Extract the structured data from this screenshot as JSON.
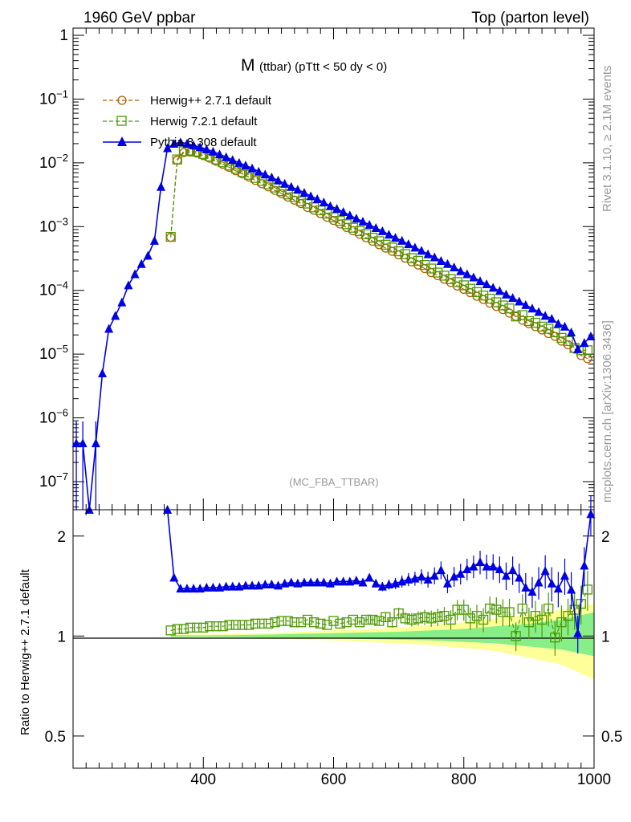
{
  "header": {
    "left": "1960 GeV ppbar",
    "right": "Top (parton level)"
  },
  "side_labels": {
    "rivet": "Rivet 3.1.10, ≥ 2.1M events",
    "source": "mcplots.cern.ch [arXiv:1306.3436]"
  },
  "watermark": "(MC_FBA_TTBAR)",
  "chart_data": [
    {
      "type": "line",
      "title_main": "M",
      "title_sub": "(ttbar) (pTtt < 50 dy < 0)",
      "yscale": "log",
      "xlim": [
        200,
        1000
      ],
      "ylim": [
        3e-08,
        1.3
      ],
      "ytick_labels": [
        "1",
        "10^{-1}",
        "10^{-2}",
        "10^{-3}",
        "10^{-4}",
        "10^{-5}",
        "10^{-6}",
        "10^{-7}"
      ],
      "legend_position": "top-left",
      "series": [
        {
          "name": "Herwig++ 2.7.1 default",
          "color": "#b35900",
          "marker": "open-circle",
          "dash": "dashed",
          "x": [
            350,
            360,
            370,
            380,
            390,
            400,
            410,
            420,
            430,
            440,
            450,
            460,
            470,
            480,
            490,
            500,
            510,
            520,
            530,
            540,
            550,
            560,
            570,
            580,
            590,
            600,
            610,
            620,
            630,
            640,
            650,
            660,
            670,
            680,
            690,
            700,
            710,
            720,
            730,
            740,
            750,
            760,
            770,
            780,
            790,
            800,
            810,
            820,
            830,
            840,
            850,
            860,
            870,
            880,
            890,
            900,
            910,
            920,
            930,
            940,
            950,
            960,
            970,
            980,
            990
          ],
          "y": [
            0.00068,
            0.011,
            0.0145,
            0.0148,
            0.0142,
            0.013,
            0.0118,
            0.0106,
            0.0095,
            0.0085,
            0.0075,
            0.0067,
            0.006,
            0.0053,
            0.0047,
            0.0042,
            0.0037,
            0.0033,
            0.0029,
            0.0026,
            0.0023,
            0.002,
            0.0018,
            0.0016,
            0.0014,
            0.00125,
            0.0011,
            0.00097,
            0.00086,
            0.00076,
            0.00067,
            0.00059,
            0.00052,
            0.00046,
            0.00041,
            0.00036,
            0.00032,
            0.00028,
            0.00025,
            0.00022,
            0.00019,
            0.00017,
            0.00015,
            0.000133,
            0.000117,
            0.000104,
            9.2e-05,
            8.1e-05,
            7.2e-05,
            6.3e-05,
            5.6e-05,
            5e-05,
            4.4e-05,
            3.9e-05,
            3.4e-05,
            3e-05,
            2.7e-05,
            2.4e-05,
            2.1e-05,
            1.9e-05,
            1.6e-05,
            1.4e-05,
            1.2e-05,
            9.5e-06,
            8.5e-06
          ]
        },
        {
          "name": "Herwig 7.2.1 default",
          "color": "#4d9900",
          "marker": "open-square",
          "dash": "dashed",
          "x": [
            350,
            360,
            370,
            380,
            390,
            400,
            410,
            420,
            430,
            440,
            450,
            460,
            470,
            480,
            490,
            500,
            510,
            520,
            530,
            540,
            550,
            560,
            570,
            580,
            590,
            600,
            610,
            620,
            630,
            640,
            650,
            660,
            670,
            680,
            690,
            700,
            710,
            720,
            730,
            740,
            750,
            760,
            770,
            780,
            790,
            800,
            810,
            820,
            830,
            840,
            850,
            860,
            870,
            880,
            890,
            900,
            910,
            920,
            930,
            940,
            950,
            960,
            970,
            980,
            990
          ],
          "y": [
            0.00069,
            0.0113,
            0.0152,
            0.0156,
            0.015,
            0.0138,
            0.0126,
            0.0113,
            0.0102,
            0.0091,
            0.0081,
            0.0072,
            0.0065,
            0.0058,
            0.0052,
            0.0046,
            0.0041,
            0.0036,
            0.0032,
            0.0029,
            0.0025,
            0.0023,
            0.002,
            0.0018,
            0.0016,
            0.0014,
            0.00123,
            0.00109,
            0.00096,
            0.00085,
            0.00076,
            0.00067,
            0.00059,
            0.00052,
            0.00047,
            0.00041,
            0.00037,
            0.00032,
            0.00029,
            0.00025,
            0.00022,
            0.00019,
            0.00017,
            0.00015,
            0.000135,
            0.00012,
            0.000106,
            9.4e-05,
            8.3e-05,
            7.4e-05,
            6.5e-05,
            5.8e-05,
            5.2e-05,
            3.9e-05,
            4.1e-05,
            3.3e-05,
            3.1e-05,
            2.7e-05,
            2.5e-05,
            2.2e-05,
            1.8e-05,
            1.6e-05,
            1.25e-05,
            1.15e-05,
            1.15e-05
          ]
        },
        {
          "name": "Pythia 8.308 default",
          "color": "#0000e6",
          "marker": "filled-triangle",
          "dash": "solid",
          "x": [
            205,
            215,
            225,
            235,
            245,
            255,
            265,
            275,
            285,
            295,
            305,
            315,
            325,
            335,
            345,
            355,
            365,
            375,
            385,
            395,
            405,
            415,
            425,
            435,
            445,
            455,
            465,
            475,
            485,
            495,
            505,
            515,
            525,
            535,
            545,
            555,
            565,
            575,
            585,
            595,
            605,
            615,
            625,
            635,
            645,
            655,
            665,
            675,
            685,
            695,
            705,
            715,
            725,
            735,
            745,
            755,
            765,
            775,
            785,
            795,
            805,
            815,
            825,
            835,
            845,
            855,
            865,
            875,
            885,
            895,
            905,
            915,
            925,
            935,
            945,
            955,
            965,
            975,
            985,
            995
          ],
          "y": [
            4e-07,
            4e-07,
            1e-08,
            4e-07,
            5e-06,
            2.5e-05,
            4e-05,
            6.5e-05,
            0.00012,
            0.00018,
            0.00026,
            0.00035,
            0.0006,
            0.0042,
            0.017,
            0.02,
            0.021,
            0.02,
            0.0188,
            0.0176,
            0.0163,
            0.015,
            0.0136,
            0.0123,
            0.0111,
            0.01,
            0.0091,
            0.0082,
            0.0073,
            0.0066,
            0.0059,
            0.0053,
            0.0047,
            0.0042,
            0.0038,
            0.0034,
            0.003,
            0.0027,
            0.0024,
            0.0021,
            0.0019,
            0.0017,
            0.0015,
            0.00134,
            0.0012,
            0.00107,
            0.00095,
            0.00085,
            0.00075,
            0.00067,
            0.0006,
            0.00053,
            0.00047,
            0.00042,
            0.00037,
            0.00033,
            0.00029,
            0.00026,
            0.00023,
            0.0002,
            0.00018,
            0.00016,
            0.00014,
            0.000125,
            0.00011,
            9.8e-05,
            8.6e-05,
            7.6e-05,
            6.7e-05,
            5.9e-05,
            5.2e-05,
            4.6e-05,
            4e-05,
            3.6e-05,
            3e-05,
            2.7e-05,
            2.2e-05,
            1.2e-05,
            1.5e-05,
            1.9e-05
          ]
        }
      ]
    },
    {
      "type": "line",
      "ylabel": "Ratio to Herwig++ 2.7.1 default",
      "yscale": "log",
      "xlim": [
        200,
        1000
      ],
      "ylim": [
        0.4,
        2.4
      ],
      "xtick_labels": [
        "400",
        "600",
        "800",
        "1000"
      ],
      "ytick_labels": [
        "0.5",
        "1",
        "2"
      ],
      "bands": {
        "x": [
          350,
          400,
          450,
          500,
          550,
          600,
          650,
          700,
          750,
          800,
          850,
          900,
          950,
          1000
        ],
        "yellow_lo": [
          0.99,
          0.99,
          0.985,
          0.98,
          0.975,
          0.97,
          0.96,
          0.95,
          0.94,
          0.92,
          0.9,
          0.86,
          0.82,
          0.74
        ],
        "yellow_hi": [
          1.01,
          1.01,
          1.015,
          1.02,
          1.03,
          1.04,
          1.05,
          1.06,
          1.08,
          1.1,
          1.13,
          1.16,
          1.2,
          1.25
        ],
        "green_lo": [
          0.995,
          0.995,
          0.993,
          0.99,
          0.988,
          0.985,
          0.98,
          0.975,
          0.97,
          0.96,
          0.95,
          0.93,
          0.91,
          0.87
        ],
        "green_hi": [
          1.005,
          1.005,
          1.007,
          1.01,
          1.015,
          1.02,
          1.025,
          1.03,
          1.04,
          1.05,
          1.07,
          1.09,
          1.12,
          1.18
        ]
      },
      "series": [
        {
          "name": "Herwig 7.2.1 default",
          "x": [
            350,
            360,
            370,
            380,
            390,
            400,
            410,
            420,
            430,
            440,
            450,
            460,
            470,
            480,
            490,
            500,
            510,
            520,
            530,
            540,
            550,
            560,
            570,
            580,
            590,
            600,
            610,
            620,
            630,
            640,
            650,
            660,
            670,
            680,
            690,
            700,
            710,
            720,
            730,
            740,
            750,
            760,
            770,
            780,
            790,
            800,
            810,
            820,
            830,
            840,
            850,
            860,
            870,
            880,
            890,
            900,
            910,
            920,
            930,
            940,
            950,
            960,
            970,
            980,
            990
          ],
          "y": [
            1.04,
            1.05,
            1.05,
            1.06,
            1.06,
            1.06,
            1.07,
            1.07,
            1.07,
            1.08,
            1.08,
            1.08,
            1.08,
            1.09,
            1.09,
            1.09,
            1.1,
            1.11,
            1.11,
            1.1,
            1.1,
            1.12,
            1.1,
            1.09,
            1.08,
            1.11,
            1.09,
            1.1,
            1.12,
            1.1,
            1.12,
            1.12,
            1.11,
            1.14,
            1.1,
            1.17,
            1.13,
            1.12,
            1.13,
            1.14,
            1.13,
            1.14,
            1.15,
            1.12,
            1.2,
            1.2,
            1.13,
            1.15,
            1.12,
            1.21,
            1.2,
            1.18,
            1.18,
            1.0,
            1.21,
            1.1,
            1.15,
            1.12,
            1.21,
            0.99,
            1.1,
            1.15,
            1.2,
            1.25,
            1.38
          ]
        },
        {
          "name": "Pythia 8.308 default",
          "x": [
            345,
            355,
            365,
            375,
            385,
            395,
            405,
            415,
            425,
            435,
            445,
            455,
            465,
            475,
            485,
            495,
            505,
            515,
            525,
            535,
            545,
            555,
            565,
            575,
            585,
            595,
            605,
            615,
            625,
            635,
            645,
            655,
            665,
            675,
            685,
            695,
            705,
            715,
            725,
            735,
            745,
            755,
            765,
            775,
            785,
            795,
            805,
            815,
            825,
            835,
            845,
            855,
            865,
            875,
            885,
            895,
            905,
            915,
            925,
            935,
            945,
            955,
            965,
            975,
            985,
            995
          ],
          "y": [
            2.5,
            1.5,
            1.39,
            1.39,
            1.39,
            1.39,
            1.4,
            1.4,
            1.4,
            1.41,
            1.41,
            1.41,
            1.42,
            1.42,
            1.42,
            1.43,
            1.43,
            1.42,
            1.44,
            1.45,
            1.44,
            1.45,
            1.45,
            1.45,
            1.45,
            1.44,
            1.46,
            1.46,
            1.46,
            1.47,
            1.45,
            1.5,
            1.44,
            1.41,
            1.43,
            1.44,
            1.46,
            1.48,
            1.49,
            1.51,
            1.48,
            1.52,
            1.58,
            1.44,
            1.51,
            1.54,
            1.59,
            1.62,
            1.67,
            1.62,
            1.62,
            1.59,
            1.52,
            1.58,
            1.5,
            1.4,
            1.36,
            1.45,
            1.57,
            1.44,
            1.39,
            1.52,
            1.38,
            1.02,
            1.63,
            2.33
          ]
        }
      ]
    }
  ]
}
